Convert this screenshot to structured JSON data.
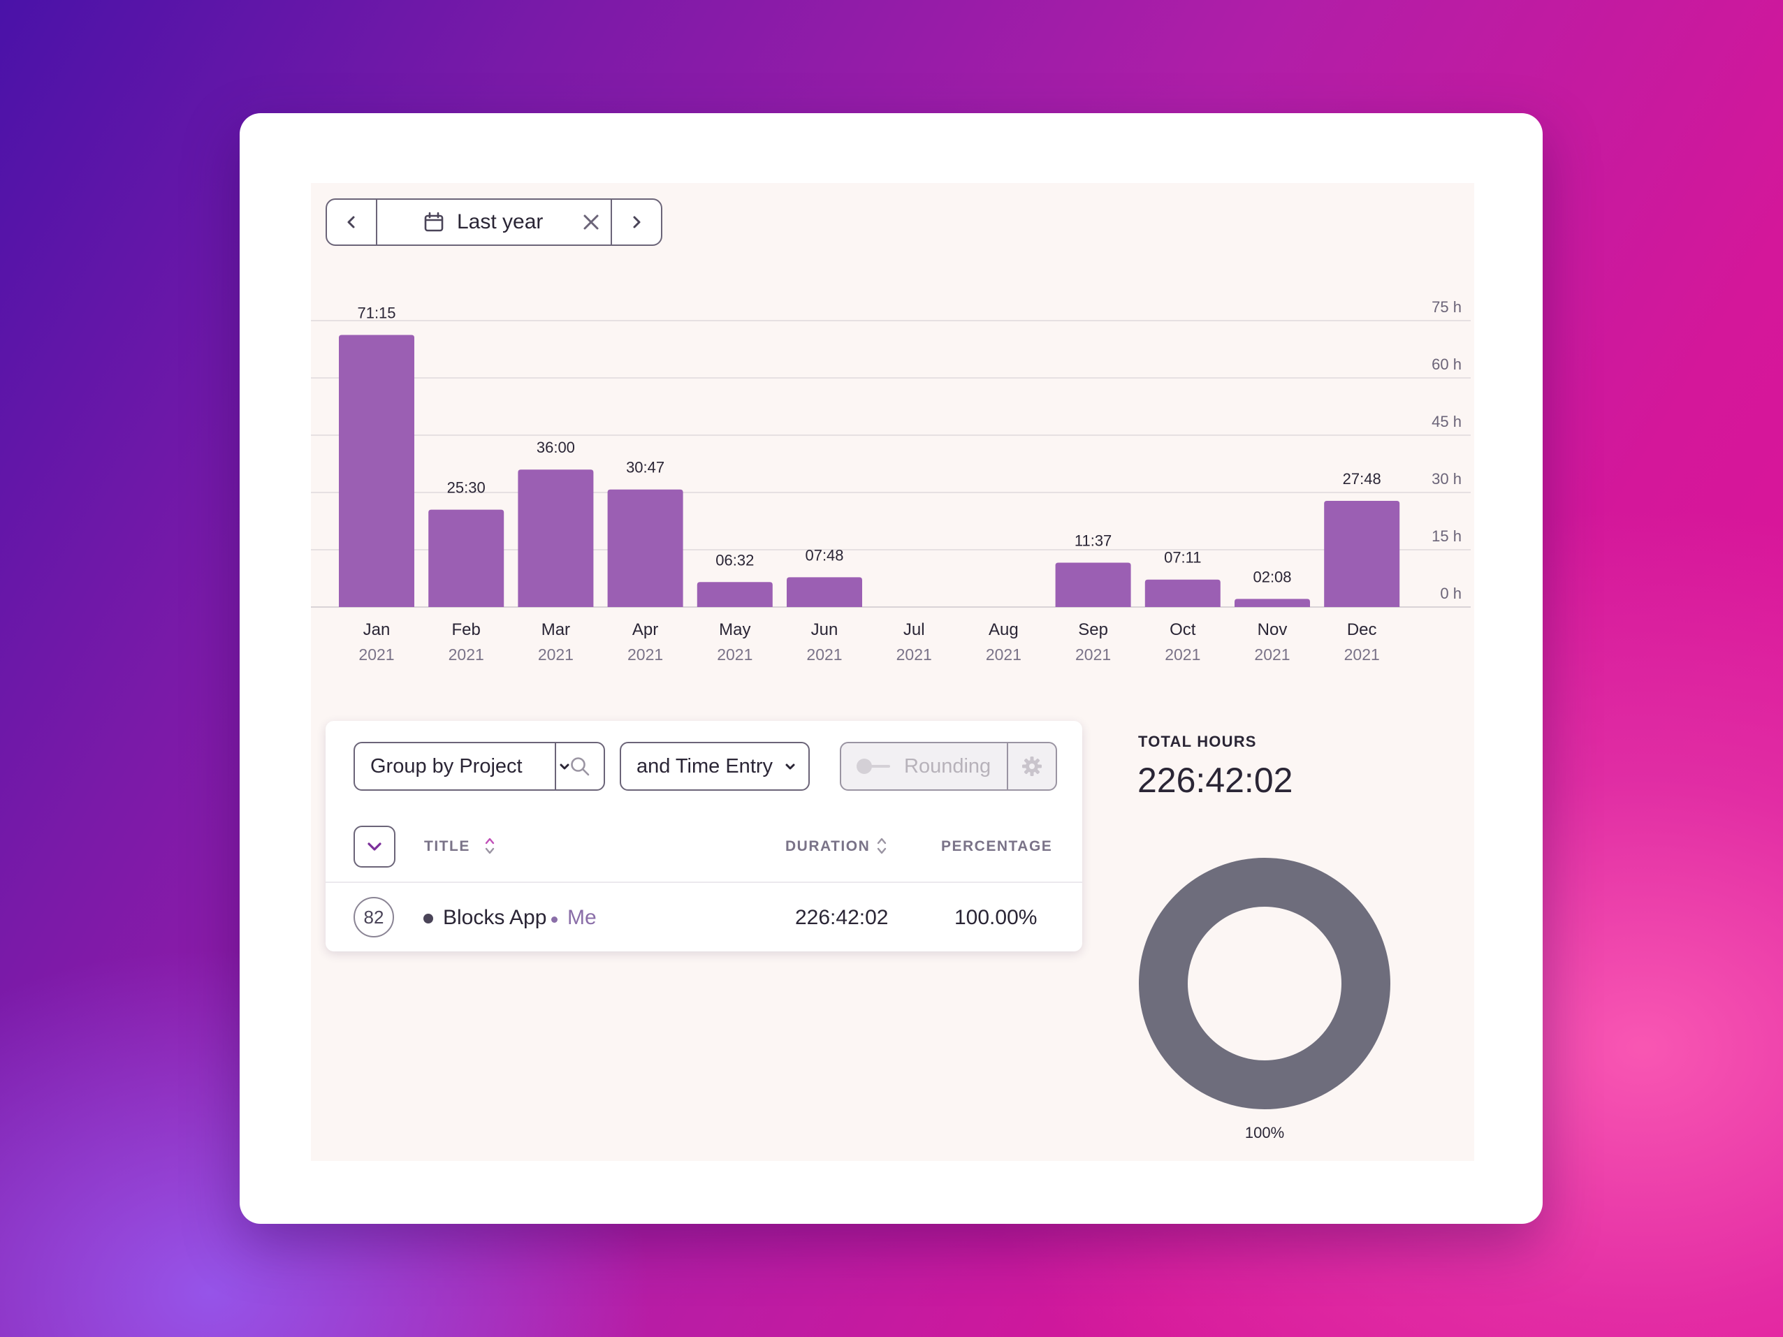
{
  "date_selector": {
    "label": "Last year"
  },
  "chart_data": {
    "type": "bar",
    "categories": [
      "Jan",
      "Feb",
      "Mar",
      "Apr",
      "May",
      "Jun",
      "Jul",
      "Aug",
      "Sep",
      "Oct",
      "Nov",
      "Dec"
    ],
    "years": [
      "2021",
      "2021",
      "2021",
      "2021",
      "2021",
      "2021",
      "2021",
      "2021",
      "2021",
      "2021",
      "2021",
      "2021"
    ],
    "values": [
      71.25,
      25.5,
      36.0,
      30.78,
      6.53,
      7.8,
      0,
      0,
      11.62,
      7.18,
      2.13,
      27.8
    ],
    "data_labels": [
      "71:15",
      "25:30",
      "36:00",
      "30:47",
      "06:32",
      "07:48",
      "",
      "",
      "11:37",
      "07:11",
      "02:08",
      "27:48"
    ],
    "yticks": [
      "0 h",
      "15 h",
      "30 h",
      "45 h",
      "60 h",
      "75 h"
    ],
    "ylim": [
      0,
      75
    ],
    "grid": true,
    "bar_color": "#9b5fb3"
  },
  "controls": {
    "group_by": "Group by Project",
    "and_by": "and Time Entry",
    "rounding": "Rounding"
  },
  "table": {
    "columns": {
      "title": "TITLE",
      "duration": "DURATION",
      "percentage": "PERCENTAGE"
    },
    "rows": [
      {
        "count": "82",
        "title": "Blocks App",
        "user": "Me",
        "duration": "226:42:02",
        "percentage": "100.00%"
      }
    ]
  },
  "totals": {
    "label": "TOTAL HOURS",
    "value": "226:42:02",
    "donut_label": "100%",
    "donut_color": "#6e6d7c"
  }
}
